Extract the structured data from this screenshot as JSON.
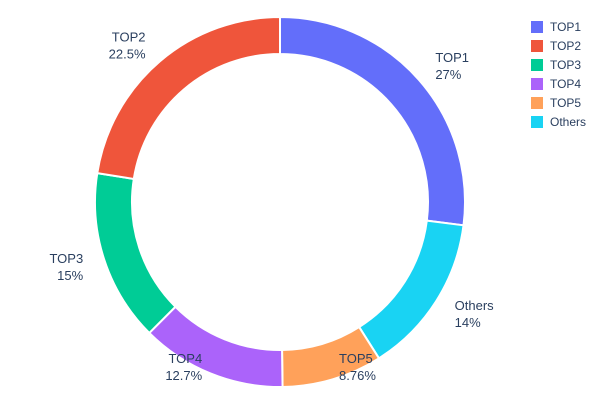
{
  "chart_data": {
    "type": "pie",
    "hole": 0.8,
    "title": "",
    "labels": [
      "TOP1",
      "TOP2",
      "TOP3",
      "TOP4",
      "TOP5",
      "Others"
    ],
    "values": [
      27,
      22.5,
      15,
      12.7,
      8.76,
      14
    ],
    "pct_labels": [
      "27%",
      "22.5%",
      "15%",
      "12.7%",
      "8.76%",
      "14%"
    ],
    "colors": [
      "#636efa",
      "#ef553b",
      "#00cc96",
      "#ab63fa",
      "#ffa15a",
      "#19d3f3"
    ],
    "display_order_clockwise_from_top": [
      "TOP1",
      "Others",
      "TOP5",
      "TOP4",
      "TOP3",
      "TOP2"
    ],
    "legend": {
      "position": "top-right",
      "entries": [
        "TOP1",
        "TOP2",
        "TOP3",
        "TOP4",
        "TOP5",
        "Others"
      ]
    },
    "text_color": "#2a3f5f",
    "slice_border_color": "#ffffff"
  }
}
